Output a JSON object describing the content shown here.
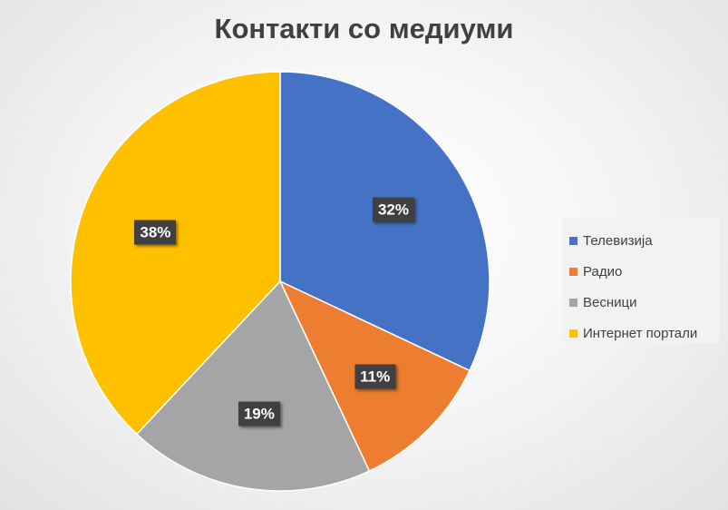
{
  "chart_data": {
    "type": "pie",
    "title": "Контакти со медиуми",
    "categories": [
      "Телевизија",
      "Радио",
      "Весници",
      "Интернет портали"
    ],
    "values": [
      32,
      11,
      19,
      38
    ],
    "labels": [
      "32%",
      "11%",
      "19%",
      "38%"
    ],
    "colors": [
      "#4472C4",
      "#ED7D31",
      "#A5A5A5",
      "#FFC000"
    ],
    "legend_position": "right"
  }
}
